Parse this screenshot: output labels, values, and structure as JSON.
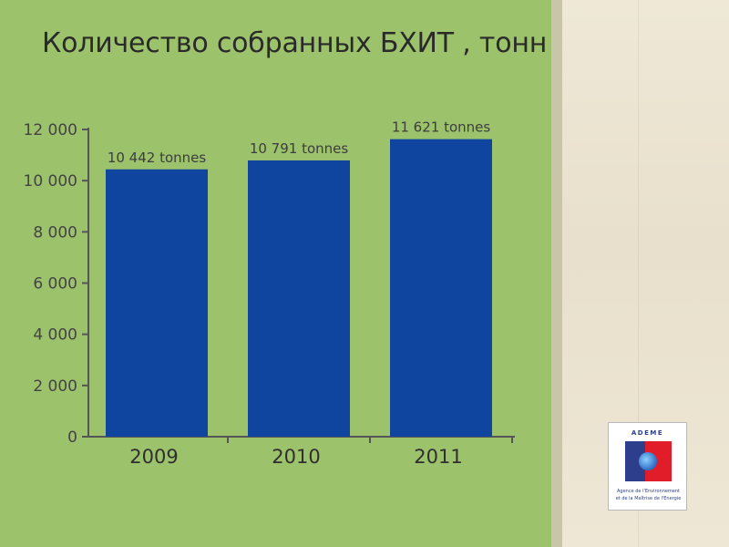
{
  "slide": {
    "title": "Количество собранных БХИТ , тонн"
  },
  "logo": {
    "wordmark": "ADEME",
    "caption_line1": "Agence de l'Environnement",
    "caption_line2": "et de la Maîtrise de l'Energie",
    "colors": {
      "blue": "#2c3e8c",
      "red": "#e11d2a"
    }
  },
  "colors": {
    "background": "#9cc26c",
    "bar": "#10459f",
    "axis": "#555555"
  },
  "chart_data": {
    "type": "bar",
    "title": "Количество собранных БХИТ , тонн",
    "categories": [
      "2009",
      "2010",
      "2011"
    ],
    "values": [
      10442,
      10791,
      11621
    ],
    "data_labels": [
      "10 442 tonnes",
      "10 791 tonnes",
      "11 621 tonnes"
    ],
    "ylim": [
      0,
      12000
    ],
    "y_ticks": [
      0,
      2000,
      4000,
      6000,
      8000,
      10000,
      12000
    ],
    "y_tick_labels": [
      "0",
      "2 000",
      "4 000",
      "6 000",
      "8 000",
      "10 000",
      "12 000"
    ],
    "xlabel": "",
    "ylabel": "",
    "grid": false,
    "legend": "none"
  }
}
